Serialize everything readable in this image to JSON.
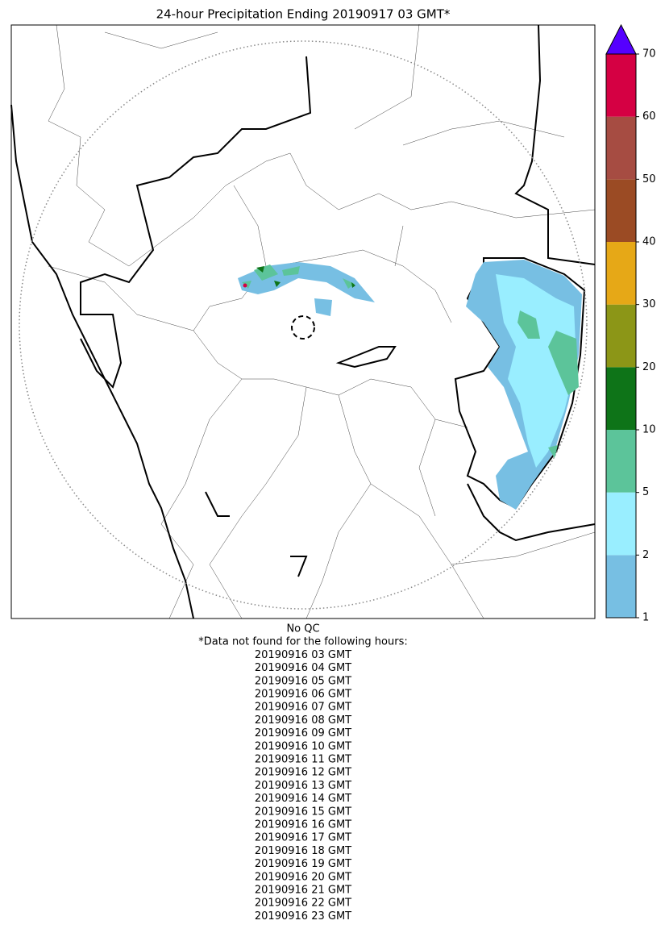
{
  "map": {
    "title": "24-hour Precipitation Ending 20190917 03 GMT*",
    "colorbar": {
      "levels": [
        1,
        2,
        5,
        10,
        20,
        30,
        40,
        50,
        60,
        70
      ],
      "colors": [
        "#77bfe3",
        "#99eeff",
        "#5cc49a",
        "#0e7418",
        "#8c9617",
        "#e6a817",
        "#9b4b24",
        "#a64c42",
        "#d50043"
      ],
      "extend_color": "#5500ff"
    },
    "notes": {
      "qc": "No QC",
      "heading": "*Data not found for the following hours:",
      "hours": [
        "20190916 03 GMT",
        "20190916 04 GMT",
        "20190916 05 GMT",
        "20190916 06 GMT",
        "20190916 07 GMT",
        "20190916 08 GMT",
        "20190916 09 GMT",
        "20190916 10 GMT",
        "20190916 11 GMT",
        "20190916 12 GMT",
        "20190916 13 GMT",
        "20190916 14 GMT",
        "20190916 15 GMT",
        "20190916 16 GMT",
        "20190916 17 GMT",
        "20190916 18 GMT",
        "20190916 19 GMT",
        "20190916 20 GMT",
        "20190916 21 GMT",
        "20190916 22 GMT",
        "20190916 23 GMT"
      ]
    }
  }
}
